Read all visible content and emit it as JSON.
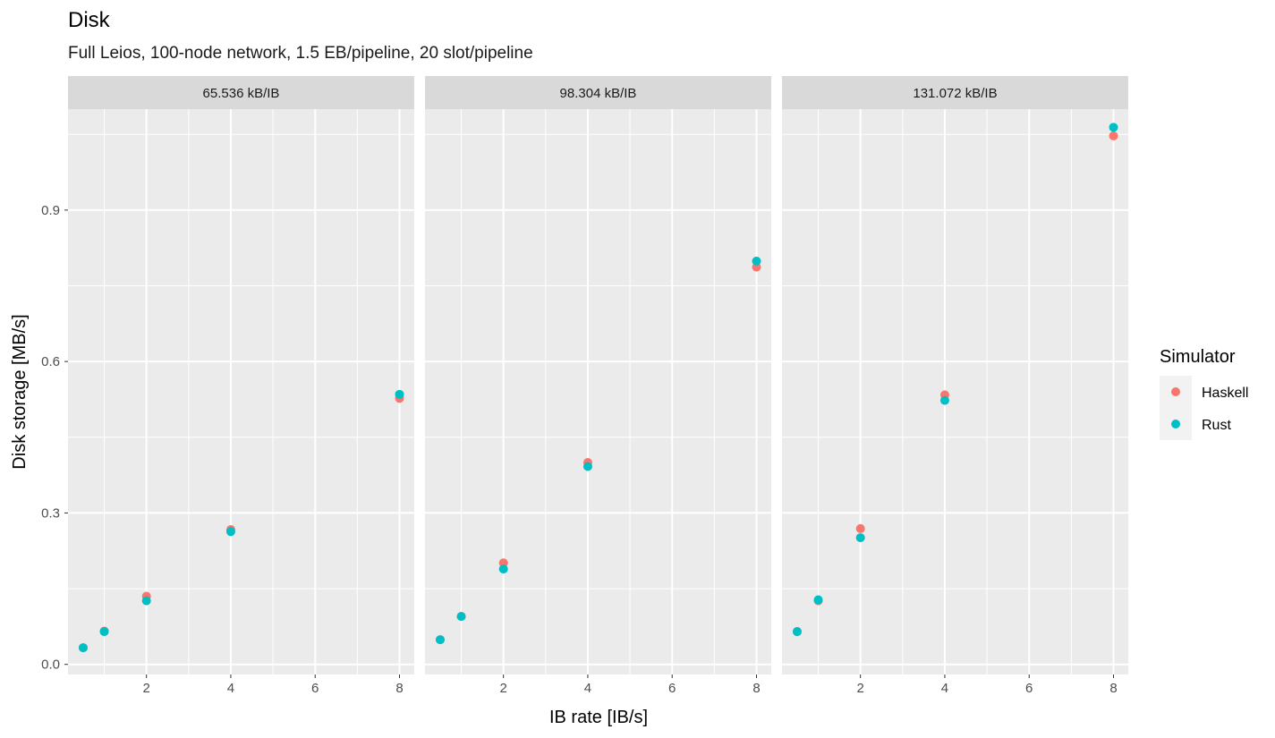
{
  "chart_data": {
    "type": "scatter",
    "title": "Disk",
    "subtitle": "Full Leios, 100-node network, 1.5 EB/pipeline, 20 slot/pipeline",
    "xlabel": "IB rate [IB/s]",
    "ylabel": "Disk storage [MB/s]",
    "xlim": [
      0.14,
      8.35
    ],
    "ylim": [
      -0.02,
      1.1
    ],
    "x_ticks": [
      2,
      4,
      6,
      8
    ],
    "y_ticks": [
      0.0,
      0.3,
      0.6,
      0.9
    ],
    "x_tick_labels": [
      "2",
      "4",
      "6",
      "8"
    ],
    "y_tick_labels": [
      "0.0",
      "0.3",
      "0.6",
      "0.9"
    ],
    "grid": true,
    "legend": {
      "title": "Simulator",
      "position": "right",
      "entries": [
        {
          "name": "Haskell",
          "color": "#F8766D"
        },
        {
          "name": "Rust",
          "color": "#00BFC4"
        }
      ]
    },
    "facets": [
      {
        "label": "65.536 kB/IB",
        "series": [
          {
            "name": "Haskell",
            "color": "#F8766D",
            "x": [
              0.5,
              1,
              2,
              4,
              8
            ],
            "y": [
              0.033,
              0.066,
              0.135,
              0.267,
              0.527
            ]
          },
          {
            "name": "Rust",
            "color": "#00BFC4",
            "x": [
              0.5,
              1,
              2,
              4,
              8
            ],
            "y": [
              0.033,
              0.065,
              0.126,
              0.263,
              0.535
            ]
          }
        ]
      },
      {
        "label": "98.304 kB/IB",
        "series": [
          {
            "name": "Haskell",
            "color": "#F8766D",
            "x": [
              0.5,
              1,
              2,
              4,
              8
            ],
            "y": [
              0.049,
              0.095,
              0.201,
              0.4,
              0.787
            ]
          },
          {
            "name": "Rust",
            "color": "#00BFC4",
            "x": [
              0.5,
              1,
              2,
              4,
              8
            ],
            "y": [
              0.049,
              0.095,
              0.189,
              0.392,
              0.799
            ]
          }
        ]
      },
      {
        "label": "131.072 kB/IB",
        "series": [
          {
            "name": "Haskell",
            "color": "#F8766D",
            "x": [
              0.5,
              1,
              2,
              4,
              8
            ],
            "y": [
              0.065,
              0.126,
              0.269,
              0.534,
              1.047
            ]
          },
          {
            "name": "Rust",
            "color": "#00BFC4",
            "x": [
              0.5,
              1,
              2,
              4,
              8
            ],
            "y": [
              0.065,
              0.128,
              0.251,
              0.523,
              1.064
            ]
          }
        ]
      }
    ]
  }
}
